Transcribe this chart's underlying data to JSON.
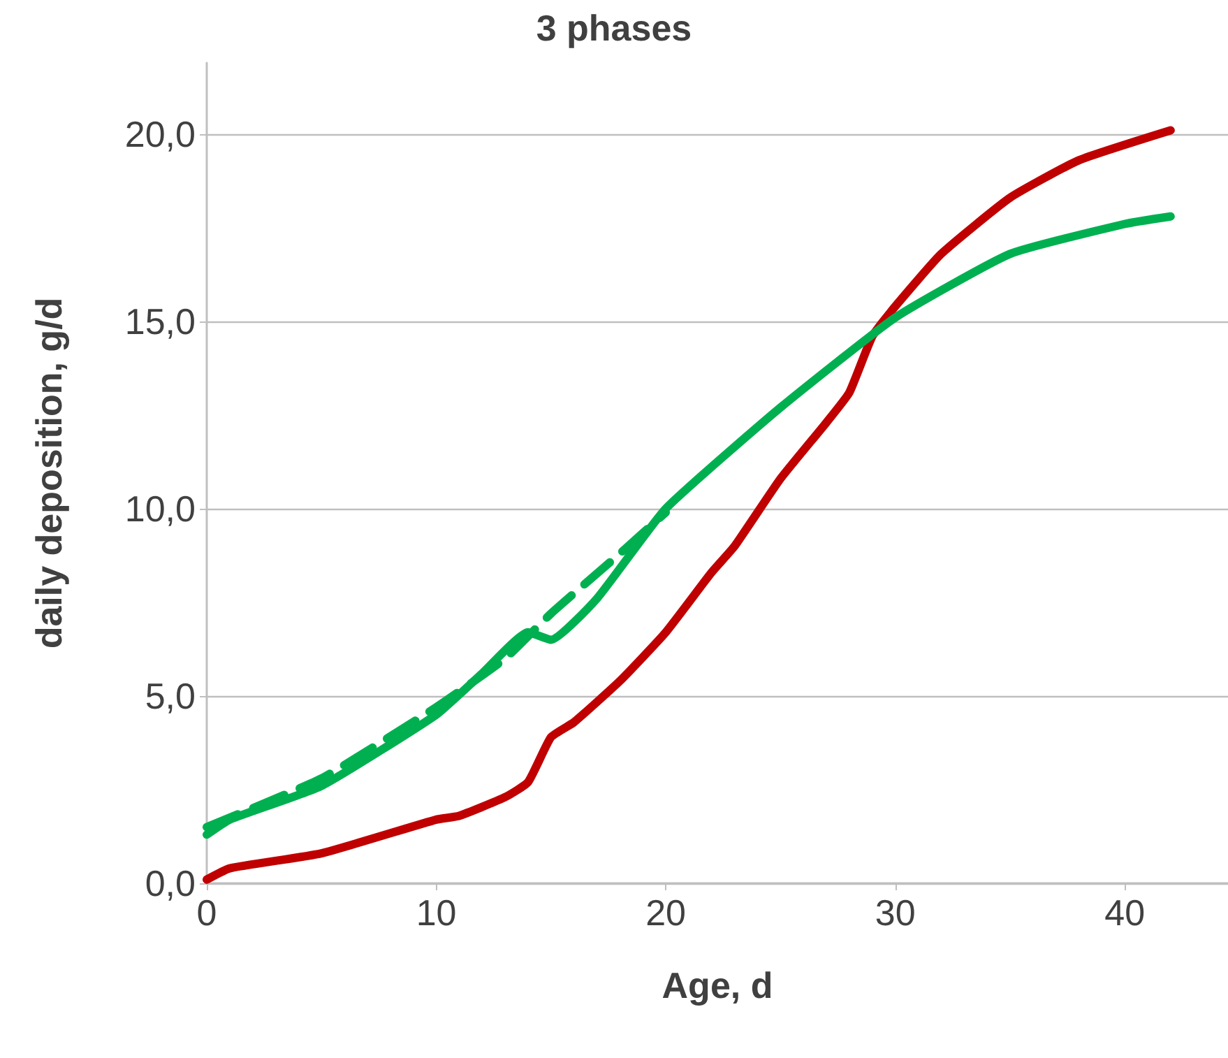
{
  "chart_data": {
    "type": "line",
    "title": "3 phases",
    "xlabel": "Age, d",
    "ylabel": "daily deposition, g/d",
    "xlim": [
      0,
      44.5
    ],
    "xticks": [
      0,
      10,
      20,
      30,
      40
    ],
    "ylim": [
      0,
      21.9
    ],
    "yticks": [
      {
        "value": 0,
        "label": "0,0"
      },
      {
        "value": 5,
        "label": "5,0"
      },
      {
        "value": 10,
        "label": "10,0"
      },
      {
        "value": 15,
        "label": "15,0"
      },
      {
        "value": 20,
        "label": "20,0"
      }
    ],
    "grid": "y",
    "marker": "none",
    "series": [
      {
        "color": "#c00000",
        "line_style": "solid",
        "x": [
          0,
          1,
          5,
          10,
          11,
          13,
          14,
          15,
          16,
          18,
          20,
          22,
          23,
          25,
          27,
          28,
          29,
          30,
          32,
          35,
          38,
          42
        ],
        "values": [
          0.1,
          0.4,
          0.8,
          1.7,
          1.8,
          2.3,
          2.7,
          3.9,
          4.3,
          5.4,
          6.7,
          8.3,
          9.0,
          10.8,
          12.3,
          13.1,
          14.6,
          15.4,
          16.8,
          18.3,
          19.3,
          20.1
        ]
      },
      {
        "color": "#00b050",
        "line_style": "dashed",
        "x": [
          0,
          5,
          10,
          13,
          15,
          18,
          20
        ],
        "values": [
          1.5,
          2.8,
          4.7,
          6.0,
          7.2,
          8.8,
          9.9
        ]
      },
      {
        "color": "#00b050",
        "line_style": "solid",
        "x": [
          0,
          1,
          5,
          10,
          12,
          14,
          15,
          17,
          20,
          25,
          30,
          35,
          40,
          42
        ],
        "values": [
          1.3,
          1.7,
          2.6,
          4.5,
          5.6,
          6.7,
          6.5,
          7.6,
          10.0,
          12.7,
          15.1,
          16.8,
          17.6,
          17.8
        ]
      }
    ]
  }
}
